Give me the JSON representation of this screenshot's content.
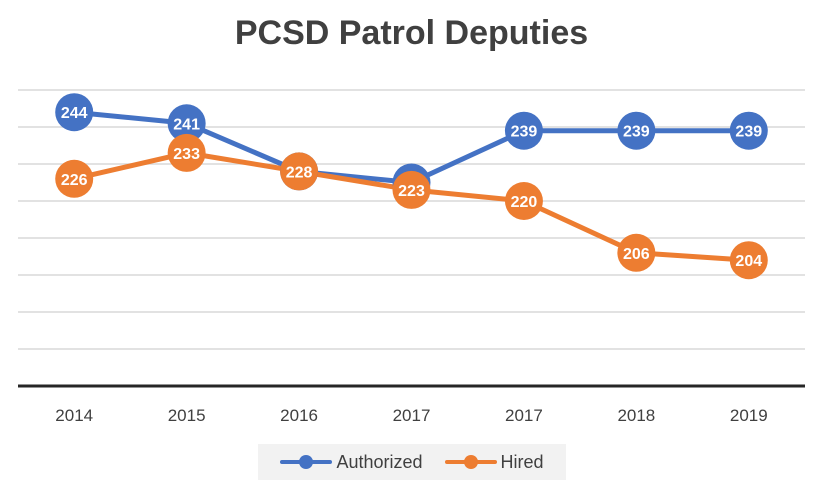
{
  "chart_data": {
    "type": "line",
    "title": "PCSD Patrol Deputies",
    "categories": [
      "2014",
      "2015",
      "2016",
      "2017",
      "2017",
      "2018",
      "2019"
    ],
    "series": [
      {
        "name": "Authorized",
        "color": "#4472c4",
        "values": [
          244,
          241,
          228,
          225,
          239,
          239,
          239
        ]
      },
      {
        "name": "Hired",
        "color": "#ed7d31",
        "values": [
          226,
          233,
          228,
          223,
          220,
          206,
          204
        ]
      }
    ],
    "ylim": [
      170,
      250
    ],
    "grid": true,
    "y_tick_labels_shown": false,
    "data_labels": true,
    "legend_position": "bottom"
  }
}
